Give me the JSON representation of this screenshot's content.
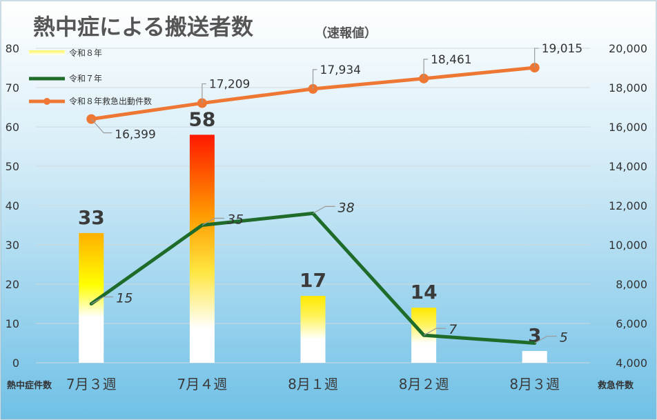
{
  "chart_data": {
    "type": "bar",
    "title": "熱中症による搬送者数",
    "subtitle": "（速報値）",
    "left_axis_label": "熱中症件数",
    "right_axis_label": "救急件数",
    "categories": [
      "7月３週",
      "7月４週",
      "8月１週",
      "8月２週",
      "8月３週"
    ],
    "y_left": {
      "min": 0,
      "max": 80,
      "step": 10,
      "ticks": [
        "0",
        "10",
        "20",
        "30",
        "40",
        "50",
        "60",
        "70",
        "80"
      ]
    },
    "y_right": {
      "min": 4000,
      "max": 20000,
      "step": 2000,
      "ticks": [
        "4,000",
        "6,000",
        "8,000",
        "10,000",
        "12,000",
        "14,000",
        "16,000",
        "18,000",
        "20,000"
      ]
    },
    "grid": true,
    "legend_position": "top-left",
    "series": [
      {
        "name": "令和８年",
        "kind": "bar",
        "axis": "left",
        "values": [
          33,
          58,
          17,
          14,
          3
        ],
        "labels": [
          "33",
          "58",
          "17",
          "14",
          "3"
        ]
      },
      {
        "name": "令和７年",
        "kind": "line",
        "axis": "left",
        "color": "#1e6b2a",
        "values": [
          15,
          35,
          38,
          7,
          5
        ],
        "labels": [
          "15",
          "35",
          "38",
          "7",
          "5"
        ]
      },
      {
        "name": "令和８年救急出動件数",
        "kind": "line",
        "axis": "right",
        "color": "#ee7733",
        "values": [
          16399,
          17209,
          17934,
          18461,
          19015
        ],
        "labels": [
          "16,399",
          "17,209",
          "17,934",
          "18,461",
          "19,015"
        ]
      }
    ]
  }
}
